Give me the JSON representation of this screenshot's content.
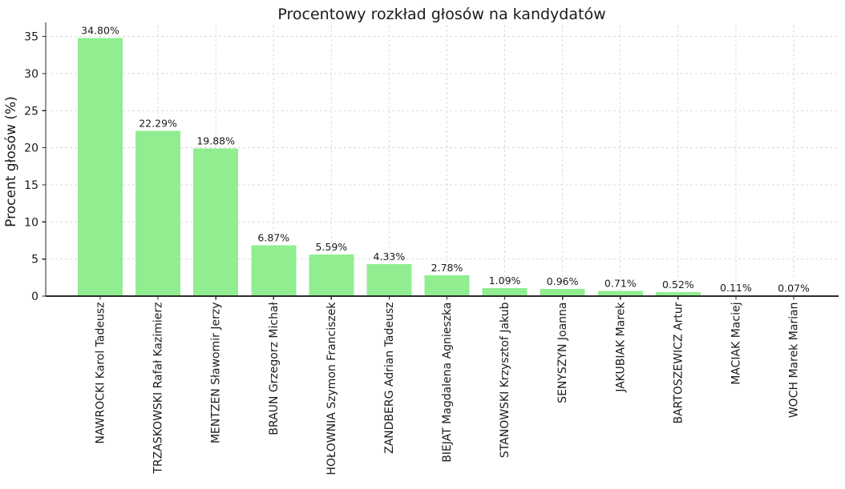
{
  "chart_data": {
    "type": "bar",
    "title": "Procentowy rozkład głosów na kandydatów",
    "ylabel": "Procent głosów (%)",
    "xlabel": "",
    "categories": [
      "NAWROCKI Karol Tadeusz",
      "TRZASKOWSKI Rafał Kazimierz",
      "MENTZEN Sławomir Jerzy",
      "BRAUN Grzegorz Michał",
      "HOŁOWNIA Szymon Franciszek",
      "ZANDBERG Adrian Tadeusz",
      "BIEJAT Magdalena Agnieszka",
      "STANOWSKI Krzysztof Jakub",
      "SENYSZYN Joanna",
      "JAKUBIAK Marek",
      "BARTOSZEWICZ Artur",
      "MACIAK Maciej",
      "WOCH Marek Marian"
    ],
    "values": [
      34.8,
      22.29,
      19.88,
      6.87,
      5.59,
      4.33,
      2.78,
      1.09,
      0.96,
      0.71,
      0.52,
      0.11,
      0.07
    ],
    "value_labels": [
      "34.80%",
      "22.29%",
      "19.88%",
      "6.87%",
      "5.59%",
      "4.33%",
      "2.78%",
      "1.09%",
      "0.96%",
      "0.71%",
      "0.52%",
      "0.11%",
      "0.07%"
    ],
    "yticks": [
      0,
      5,
      10,
      15,
      20,
      25,
      30,
      35
    ],
    "ylim": [
      0,
      36.9
    ],
    "x_tick_rotation": 90,
    "grid": {
      "visible": true,
      "style": "dashed",
      "which": "both"
    },
    "legend": {
      "visible": false
    },
    "colors": {
      "bar": "#90EE90",
      "grid": "#d6d6d6",
      "axis": "#2b2b2b",
      "text": "#1a1a1a",
      "background": "#ffffff"
    }
  }
}
